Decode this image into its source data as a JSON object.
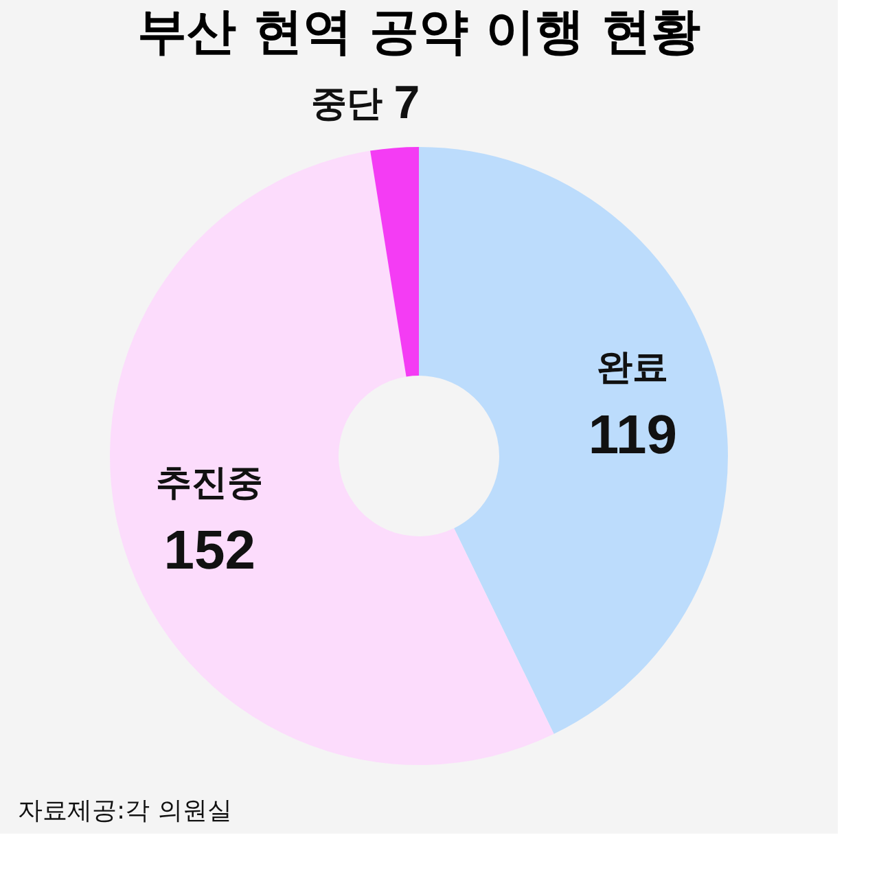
{
  "chart_data": {
    "type": "donut",
    "title": "부산 현역 공약 이행 현황",
    "categories": [
      "완료",
      "추진중",
      "중단"
    ],
    "values": [
      119,
      152,
      7
    ],
    "colors": [
      "#bcdcfc",
      "#fcdcfc",
      "#f43cf4"
    ],
    "data_labels": true,
    "legend": false,
    "annotations": [
      "자료제공:각 의원실"
    ]
  }
}
